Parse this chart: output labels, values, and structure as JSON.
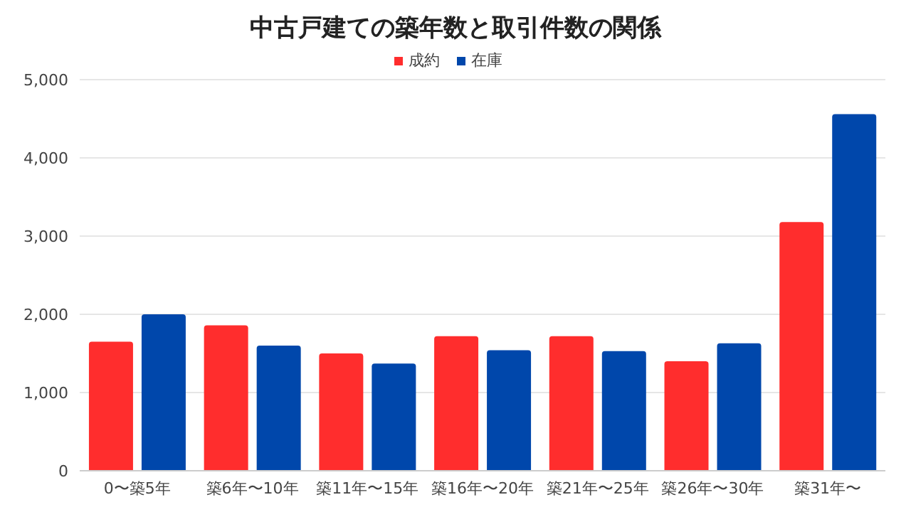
{
  "chart_data": {
    "type": "bar",
    "title": "中古戸建ての築年数と取引件数の関係",
    "categories": [
      "0〜築5年",
      "築6年〜10年",
      "築11年〜15年",
      "築16年〜20年",
      "築21年〜25年",
      "築26年〜30年",
      "築31年〜"
    ],
    "series": [
      {
        "name": "成約",
        "color": "#ff2d2d",
        "values": [
          1650,
          1860,
          1500,
          1720,
          1720,
          1400,
          3180
        ]
      },
      {
        "name": "在庫",
        "color": "#0047ab",
        "values": [
          2000,
          1600,
          1370,
          1540,
          1530,
          1630,
          4560
        ]
      }
    ],
    "ylim": [
      0,
      5000
    ],
    "yticks": [
      0,
      {
        "value": 1000,
        "label": "1,000"
      },
      {
        "value": 2000,
        "label": "2,000"
      },
      {
        "value": 3000,
        "label": "3,000"
      },
      {
        "value": 4000,
        "label": "4,000"
      },
      {
        "value": 5000,
        "label": "5,000"
      }
    ],
    "grid": "y",
    "legend": "top"
  }
}
